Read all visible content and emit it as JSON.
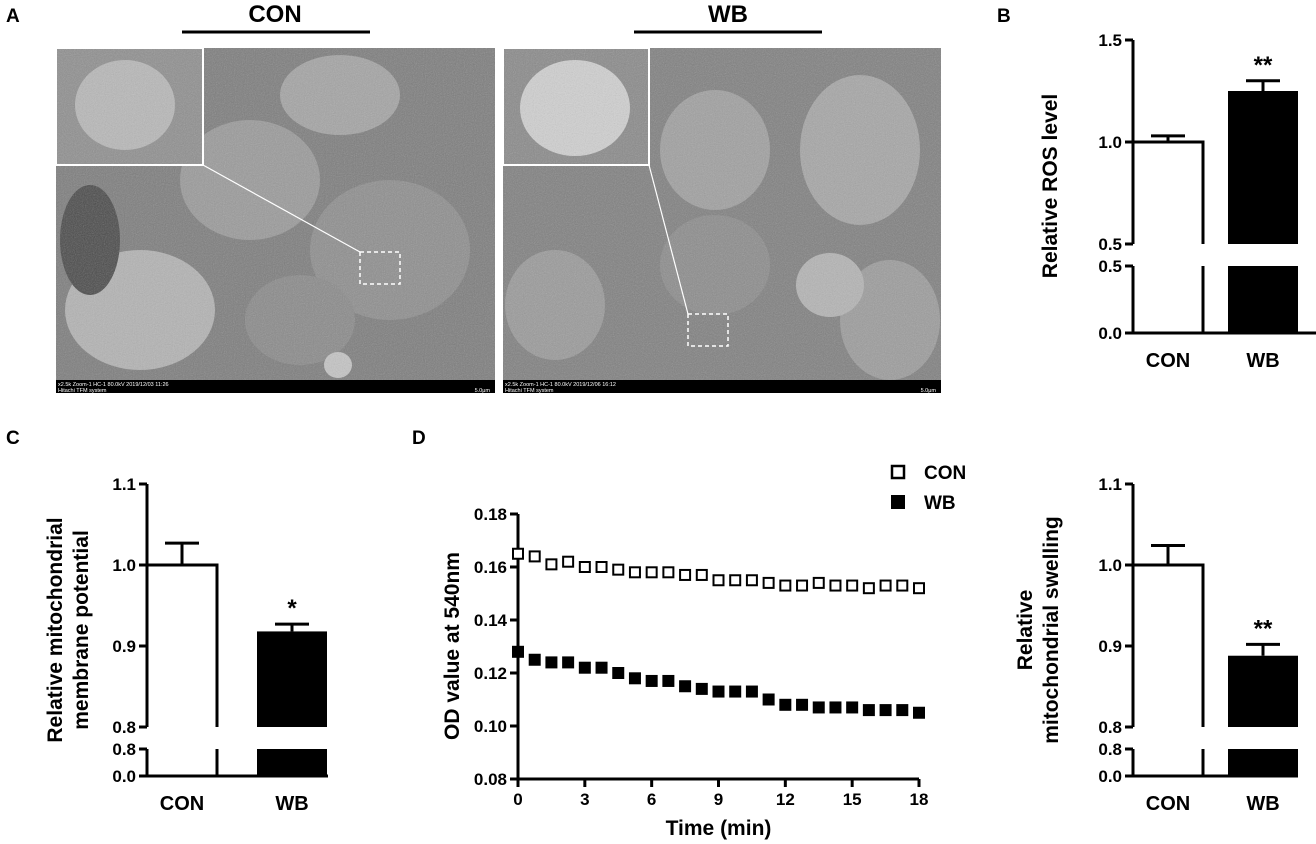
{
  "panels": {
    "a": "A",
    "b": "B",
    "c": "C",
    "d": "D"
  },
  "micrographs": [
    {
      "label": "CON",
      "meta_line1": "x2.5k Zoom-1 HC-1 80.0kV 2019/12/03 11:26",
      "meta_line2": "Hitachi TFM system",
      "scale": "5.0μm"
    },
    {
      "label": "WB",
      "meta_line1": "x2.5k Zoom-1 HC-1 80.0kV 2019/12/06 16:12",
      "meta_line2": "Hitachi TFM system",
      "scale": "5.0μm"
    }
  ],
  "colors": {
    "con_fill": "#ffffff",
    "wb_fill": "#000000",
    "axis": "#000000"
  },
  "chart_data": [
    {
      "id": "ros",
      "type": "bar",
      "ylabel": "Relative ROS level",
      "categories": [
        "CON",
        "WB"
      ],
      "values": [
        1.0,
        1.25
      ],
      "errors": [
        0.03,
        0.05
      ],
      "significance": [
        "",
        "**"
      ],
      "fills": [
        "#ffffff",
        "#000000"
      ],
      "axis_break": true,
      "y_lower": {
        "min": 0.0,
        "max": 0.5,
        "ticks": [
          0.0,
          0.5
        ],
        "tick_labels": [
          "0.0",
          "0.5"
        ]
      },
      "y_upper": {
        "min": 0.5,
        "max": 1.5,
        "ticks": [
          0.5,
          1.0,
          1.5
        ],
        "tick_labels": [
          "0.5",
          "1.0",
          "1.5"
        ]
      }
    },
    {
      "id": "mmp",
      "type": "bar",
      "ylabel_lines": [
        "Relative mitochondrial",
        "membrane potential"
      ],
      "categories": [
        "CON",
        "WB"
      ],
      "values": [
        1.0,
        0.918
      ],
      "errors": [
        0.027,
        0.009
      ],
      "significance": [
        "",
        "*"
      ],
      "fills": [
        "#ffffff",
        "#000000"
      ],
      "axis_break": true,
      "y_lower": {
        "min": 0.0,
        "max": 0.8,
        "ticks": [
          0.0,
          0.8
        ],
        "tick_labels": [
          "0.0",
          "0.8"
        ]
      },
      "y_upper": {
        "min": 0.8,
        "max": 1.1,
        "ticks": [
          0.8,
          0.9,
          1.0,
          1.1
        ],
        "tick_labels": [
          "0.8",
          "0.9",
          "1.0",
          "1.1"
        ]
      }
    },
    {
      "id": "od",
      "type": "scatter",
      "xlabel": "Time (min)",
      "ylabel": "OD value at 540nm",
      "xlim": [
        0,
        18
      ],
      "ylim": [
        0.08,
        0.18
      ],
      "xticks": [
        0,
        3,
        6,
        9,
        12,
        15,
        18
      ],
      "yticks": [
        0.08,
        0.1,
        0.12,
        0.14,
        0.16,
        0.18
      ],
      "ytick_labels": [
        "0.08",
        "0.10",
        "0.12",
        "0.14",
        "0.16",
        "0.18"
      ],
      "legend_position": "top-right",
      "x": [
        0,
        0.75,
        1.5,
        2.25,
        3,
        3.75,
        4.5,
        5.25,
        6,
        6.75,
        7.5,
        8.25,
        9,
        9.75,
        10.5,
        11.25,
        12,
        12.75,
        13.5,
        14.25,
        15,
        15.75,
        16.5,
        17.25,
        18
      ],
      "series": [
        {
          "name": "CON",
          "marker": "open-square",
          "values": [
            0.165,
            0.164,
            0.161,
            0.162,
            0.16,
            0.16,
            0.159,
            0.158,
            0.158,
            0.158,
            0.157,
            0.157,
            0.155,
            0.155,
            0.155,
            0.154,
            0.153,
            0.153,
            0.154,
            0.153,
            0.153,
            0.152,
            0.153,
            0.153,
            0.152
          ]
        },
        {
          "name": "WB",
          "marker": "filled-square",
          "values": [
            0.128,
            0.125,
            0.124,
            0.124,
            0.122,
            0.122,
            0.12,
            0.118,
            0.117,
            0.117,
            0.115,
            0.114,
            0.113,
            0.113,
            0.113,
            0.11,
            0.108,
            0.108,
            0.107,
            0.107,
            0.107,
            0.106,
            0.106,
            0.106,
            0.105
          ]
        }
      ]
    },
    {
      "id": "swelling",
      "type": "bar",
      "ylabel_lines": [
        "Relative",
        "mitochondrial swelling"
      ],
      "categories": [
        "CON",
        "WB"
      ],
      "values": [
        1.0,
        0.888
      ],
      "errors": [
        0.024,
        0.014
      ],
      "significance": [
        "",
        "**"
      ],
      "fills": [
        "#ffffff",
        "#000000"
      ],
      "axis_break": true,
      "y_lower": {
        "min": 0.0,
        "max": 0.8,
        "ticks": [
          0.0,
          0.8
        ],
        "tick_labels": [
          "0.0",
          "0.8"
        ]
      },
      "y_upper": {
        "min": 0.8,
        "max": 1.1,
        "ticks": [
          0.8,
          0.9,
          1.0,
          1.1
        ],
        "tick_labels": [
          "0.8",
          "0.9",
          "1.0",
          "1.1"
        ]
      }
    }
  ]
}
